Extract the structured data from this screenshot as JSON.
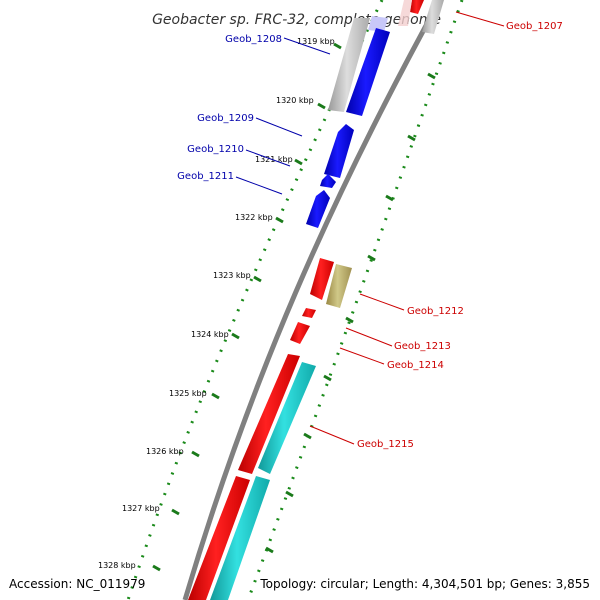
{
  "title": "Geobacter sp. FRC-32, complete genome",
  "footer": {
    "accession": "Accession: NC_011979",
    "topology": "Topology: circular; Length: 4,304,501 bp; Genes: 3,855"
  },
  "colors": {
    "backbone": "#808080",
    "tick": "#1a7a1a",
    "forward_blue": "#0000ee",
    "reverse_gray": "#bbbbbb",
    "red": "#ee0000",
    "olive": "#bbb070",
    "cyan": "#22cccc",
    "label_blue": "#0000aa",
    "label_red": "#cc0000"
  },
  "ticks": [
    "1319 kbp",
    "1320 kbp",
    "1321 kbp",
    "1322 kbp",
    "1323 kbp",
    "1324 kbp",
    "1325 kbp",
    "1326 kbp",
    "1327 kbp",
    "1328 kbp"
  ],
  "genes": [
    {
      "name": "Geob_1207",
      "color": "label_red"
    },
    {
      "name": "Geob_1208",
      "color": "label_blue"
    },
    {
      "name": "Geob_1209",
      "color": "label_blue"
    },
    {
      "name": "Geob_1210",
      "color": "label_blue"
    },
    {
      "name": "Geob_1211",
      "color": "label_blue"
    },
    {
      "name": "Geob_1212",
      "color": "label_red"
    },
    {
      "name": "Geob_1213",
      "color": "label_red"
    },
    {
      "name": "Geob_1214",
      "color": "label_red"
    },
    {
      "name": "Geob_1215",
      "color": "label_red"
    }
  ]
}
